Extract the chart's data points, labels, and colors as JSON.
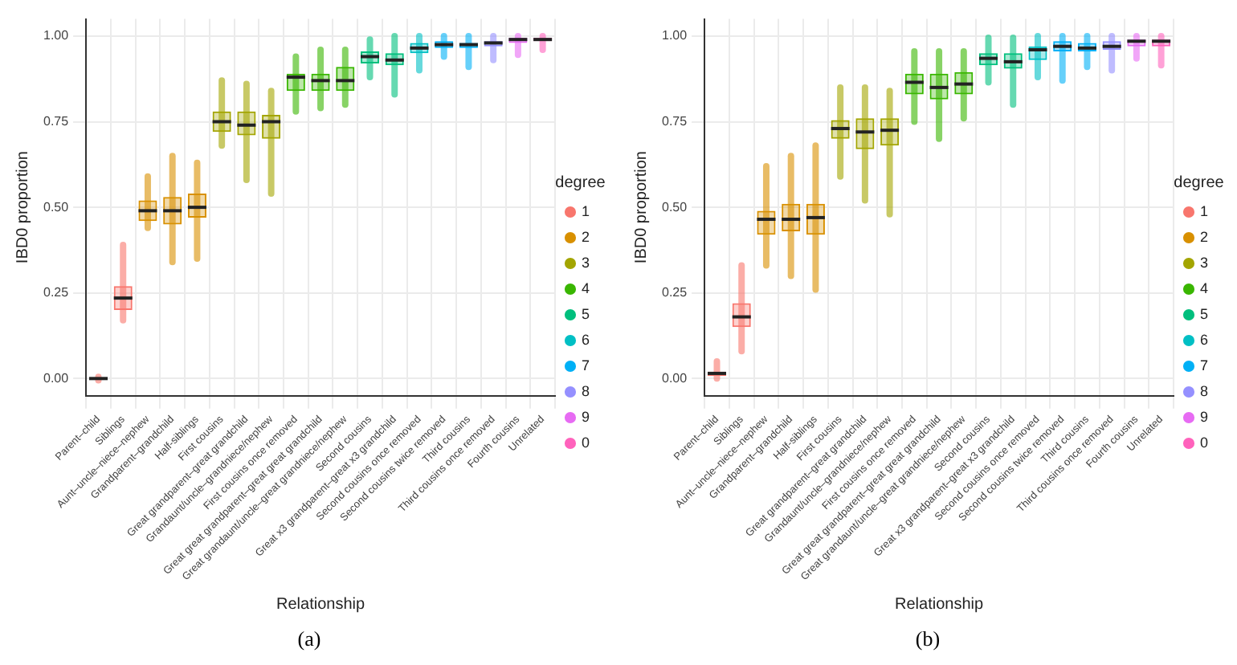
{
  "chart_data": [
    {
      "type": "box",
      "title": null,
      "xlabel": "Relationship",
      "ylabel": "IBD0 proportion",
      "legend_title": "degree",
      "legend": "right",
      "grid": true,
      "ylim": [
        -0.05,
        1.05
      ],
      "yticks": [
        {
          "value": 0,
          "label": "0.00"
        },
        {
          "value": 0.25,
          "label": "0.25"
        },
        {
          "value": 0.5,
          "label": "0.50"
        },
        {
          "value": 0.75,
          "label": "0.75"
        },
        {
          "value": 1,
          "label": "1.00"
        }
      ],
      "annotations": [
        "(a)"
      ],
      "categories": [
        "Parent–child",
        "Siblings",
        "Aunt–uncle–niece–nephew",
        "Grandparent–grandchild",
        "Half-siblings",
        "First cousins",
        "Great grandparent–great grandchild",
        "Grandaunt/uncle–grandniece/nephew",
        "First cousins once removed",
        "Great great grandparent–great great grandchild",
        "Great grandaunt/uncle–great grandniece/nephew",
        "Second cousins",
        "Great x3 grandparent–great x3 grandchild",
        "Second cousins once removed",
        "Second cousins twice removed",
        "Third cousins",
        "Third cousins once removed",
        "Fourth cousins",
        "Unrelated"
      ],
      "series": [
        {
          "name": "1",
          "color": "#f8766d",
          "boxes": [
            {
              "low": -0.005,
              "q1": -0.003,
              "median": 0,
              "q3": 0.002,
              "high": 0.005
            },
            {
              "low": 0.17,
              "q1": 0.2,
              "median": 0.235,
              "q3": 0.27,
              "high": 0.39
            },
            null,
            null,
            null,
            null,
            null,
            null,
            null,
            null,
            null,
            null,
            null,
            null,
            null,
            null,
            null,
            null,
            null
          ]
        },
        {
          "name": "2",
          "color": "#d89000",
          "boxes": [
            null,
            null,
            {
              "low": 0.44,
              "q1": 0.46,
              "median": 0.49,
              "q3": 0.52,
              "high": 0.59
            },
            {
              "low": 0.34,
              "q1": 0.45,
              "median": 0.49,
              "q3": 0.53,
              "high": 0.65
            },
            {
              "low": 0.35,
              "q1": 0.47,
              "median": 0.5,
              "q3": 0.54,
              "high": 0.63
            },
            null,
            null,
            null,
            null,
            null,
            null,
            null,
            null,
            null,
            null,
            null,
            null,
            null,
            null
          ]
        },
        {
          "name": "3",
          "color": "#a3a500",
          "boxes": [
            null,
            null,
            null,
            null,
            null,
            {
              "low": 0.68,
              "q1": 0.72,
              "median": 0.75,
              "q3": 0.78,
              "high": 0.87
            },
            {
              "low": 0.58,
              "q1": 0.71,
              "median": 0.74,
              "q3": 0.78,
              "high": 0.86
            },
            {
              "low": 0.54,
              "q1": 0.7,
              "median": 0.75,
              "q3": 0.77,
              "high": 0.84
            },
            null,
            null,
            null,
            null,
            null,
            null,
            null,
            null,
            null,
            null,
            null
          ]
        },
        {
          "name": "4",
          "color": "#39b600",
          "boxes": [
            null,
            null,
            null,
            null,
            null,
            null,
            null,
            null,
            {
              "low": 0.78,
              "q1": 0.84,
              "median": 0.88,
              "q3": 0.89,
              "high": 0.94
            },
            {
              "low": 0.79,
              "q1": 0.84,
              "median": 0.87,
              "q3": 0.89,
              "high": 0.96
            },
            {
              "low": 0.8,
              "q1": 0.84,
              "median": 0.87,
              "q3": 0.91,
              "high": 0.96
            },
            null,
            null,
            null,
            null,
            null,
            null,
            null,
            null
          ]
        },
        {
          "name": "5",
          "color": "#00bf7d",
          "boxes": [
            null,
            null,
            null,
            null,
            null,
            null,
            null,
            null,
            null,
            null,
            null,
            {
              "low": 0.88,
              "q1": 0.92,
              "median": 0.94,
              "q3": 0.955,
              "high": 0.99
            },
            {
              "low": 0.83,
              "q1": 0.915,
              "median": 0.93,
              "q3": 0.95,
              "high": 1
            },
            null,
            null,
            null,
            null,
            null,
            null
          ]
        },
        {
          "name": "6",
          "color": "#00bfc4",
          "boxes": [
            null,
            null,
            null,
            null,
            null,
            null,
            null,
            null,
            null,
            null,
            null,
            null,
            null,
            {
              "low": 0.9,
              "q1": 0.95,
              "median": 0.965,
              "q3": 0.98,
              "high": 1
            },
            null,
            null,
            null,
            null,
            null
          ]
        },
        {
          "name": "7",
          "color": "#00b0f6",
          "boxes": [
            null,
            null,
            null,
            null,
            null,
            null,
            null,
            null,
            null,
            null,
            null,
            null,
            null,
            null,
            {
              "low": 0.94,
              "q1": 0.965,
              "median": 0.975,
              "q3": 0.985,
              "high": 1
            },
            {
              "low": 0.91,
              "q1": 0.965,
              "median": 0.975,
              "q3": 0.98,
              "high": 1
            },
            null,
            null,
            null
          ]
        },
        {
          "name": "8",
          "color": "#9590ff",
          "boxes": [
            null,
            null,
            null,
            null,
            null,
            null,
            null,
            null,
            null,
            null,
            null,
            null,
            null,
            null,
            null,
            null,
            {
              "low": 0.93,
              "q1": 0.97,
              "median": 0.98,
              "q3": 0.985,
              "high": 1
            },
            null,
            null
          ]
        },
        {
          "name": "9",
          "color": "#e76bf3",
          "boxes": [
            null,
            null,
            null,
            null,
            null,
            null,
            null,
            null,
            null,
            null,
            null,
            null,
            null,
            null,
            null,
            null,
            null,
            {
              "low": 0.945,
              "q1": 0.98,
              "median": 0.99,
              "q3": 0.995,
              "high": 1
            },
            null
          ]
        },
        {
          "name": "0",
          "color": "#ff62bc",
          "boxes": [
            null,
            null,
            null,
            null,
            null,
            null,
            null,
            null,
            null,
            null,
            null,
            null,
            null,
            null,
            null,
            null,
            null,
            null,
            {
              "low": 0.96,
              "q1": 0.985,
              "median": 0.99,
              "q3": 0.995,
              "high": 1
            }
          ]
        }
      ]
    },
    {
      "type": "box",
      "title": null,
      "xlabel": "Relationship",
      "ylabel": "IBD0 proportion",
      "legend_title": "degree",
      "legend": "right",
      "grid": true,
      "ylim": [
        -0.05,
        1.05
      ],
      "yticks": [
        {
          "value": 0,
          "label": "0.00"
        },
        {
          "value": 0.25,
          "label": "0.25"
        },
        {
          "value": 0.5,
          "label": "0.50"
        },
        {
          "value": 0.75,
          "label": "0.75"
        },
        {
          "value": 1,
          "label": "1.00"
        }
      ],
      "annotations": [
        "(b)"
      ],
      "categories": [
        "Parent–child",
        "Siblings",
        "Aunt–uncle–niece–nephew",
        "Grandparent–grandchild",
        "Half-siblings",
        "First cousins",
        "Great grandparent–great grandchild",
        "Grandaunt/uncle–grandniece/nephew",
        "First cousins once removed",
        "Great great grandparent–great great grandchild",
        "Great grandaunt/uncle–great grandniece/nephew",
        "Second cousins",
        "Great x3 grandparent–great x3 grandchild",
        "Second cousins once removed",
        "Second cousins twice removed",
        "Third cousins",
        "Third cousins once removed",
        "Fourth cousins",
        "Unrelated"
      ],
      "series": [
        {
          "name": "1",
          "color": "#f8766d",
          "boxes": [
            {
              "low": 0,
              "q1": 0.008,
              "median": 0.015,
              "q3": 0.02,
              "high": 0.05
            },
            {
              "low": 0.08,
              "q1": 0.15,
              "median": 0.18,
              "q3": 0.22,
              "high": 0.33
            },
            null,
            null,
            null,
            null,
            null,
            null,
            null,
            null,
            null,
            null,
            null,
            null,
            null,
            null,
            null,
            null,
            null
          ]
        },
        {
          "name": "2",
          "color": "#d89000",
          "boxes": [
            null,
            null,
            {
              "low": 0.33,
              "q1": 0.42,
              "median": 0.465,
              "q3": 0.49,
              "high": 0.62
            },
            {
              "low": 0.3,
              "q1": 0.43,
              "median": 0.465,
              "q3": 0.51,
              "high": 0.65
            },
            {
              "low": 0.26,
              "q1": 0.42,
              "median": 0.47,
              "q3": 0.51,
              "high": 0.68
            },
            null,
            null,
            null,
            null,
            null,
            null,
            null,
            null,
            null,
            null,
            null,
            null,
            null,
            null
          ]
        },
        {
          "name": "3",
          "color": "#a3a500",
          "boxes": [
            null,
            null,
            null,
            null,
            null,
            {
              "low": 0.59,
              "q1": 0.7,
              "median": 0.73,
              "q3": 0.755,
              "high": 0.85
            },
            {
              "low": 0.52,
              "q1": 0.67,
              "median": 0.72,
              "q3": 0.76,
              "high": 0.85
            },
            {
              "low": 0.48,
              "q1": 0.68,
              "median": 0.725,
              "q3": 0.76,
              "high": 0.84
            },
            null,
            null,
            null,
            null,
            null,
            null,
            null,
            null,
            null,
            null,
            null
          ]
        },
        {
          "name": "4",
          "color": "#39b600",
          "boxes": [
            null,
            null,
            null,
            null,
            null,
            null,
            null,
            null,
            {
              "low": 0.75,
              "q1": 0.83,
              "median": 0.865,
              "q3": 0.89,
              "high": 0.955
            },
            {
              "low": 0.7,
              "q1": 0.815,
              "median": 0.85,
              "q3": 0.89,
              "high": 0.955
            },
            {
              "low": 0.76,
              "q1": 0.83,
              "median": 0.86,
              "q3": 0.895,
              "high": 0.955
            },
            null,
            null,
            null,
            null,
            null,
            null,
            null,
            null
          ]
        },
        {
          "name": "5",
          "color": "#00bf7d",
          "boxes": [
            null,
            null,
            null,
            null,
            null,
            null,
            null,
            null,
            null,
            null,
            null,
            {
              "low": 0.865,
              "q1": 0.915,
              "median": 0.935,
              "q3": 0.95,
              "high": 0.995
            },
            {
              "low": 0.8,
              "q1": 0.905,
              "median": 0.925,
              "q3": 0.95,
              "high": 0.995
            },
            null,
            null,
            null,
            null,
            null,
            null
          ]
        },
        {
          "name": "6",
          "color": "#00bfc4",
          "boxes": [
            null,
            null,
            null,
            null,
            null,
            null,
            null,
            null,
            null,
            null,
            null,
            null,
            null,
            {
              "low": 0.88,
              "q1": 0.93,
              "median": 0.96,
              "q3": 0.97,
              "high": 1
            },
            null,
            null,
            null,
            null,
            null
          ]
        },
        {
          "name": "7",
          "color": "#00b0f6",
          "boxes": [
            null,
            null,
            null,
            null,
            null,
            null,
            null,
            null,
            null,
            null,
            null,
            null,
            null,
            null,
            {
              "low": 0.87,
              "q1": 0.955,
              "median": 0.97,
              "q3": 0.985,
              "high": 1
            },
            {
              "low": 0.91,
              "q1": 0.955,
              "median": 0.965,
              "q3": 0.98,
              "high": 1
            },
            null,
            null,
            null
          ]
        },
        {
          "name": "8",
          "color": "#9590ff",
          "boxes": [
            null,
            null,
            null,
            null,
            null,
            null,
            null,
            null,
            null,
            null,
            null,
            null,
            null,
            null,
            null,
            null,
            {
              "low": 0.9,
              "q1": 0.96,
              "median": 0.97,
              "q3": 0.985,
              "high": 1
            },
            null,
            null
          ]
        },
        {
          "name": "9",
          "color": "#e76bf3",
          "boxes": [
            null,
            null,
            null,
            null,
            null,
            null,
            null,
            null,
            null,
            null,
            null,
            null,
            null,
            null,
            null,
            null,
            null,
            {
              "low": 0.935,
              "q1": 0.97,
              "median": 0.985,
              "q3": 0.99,
              "high": 1
            },
            null
          ]
        },
        {
          "name": "0",
          "color": "#ff62bc",
          "boxes": [
            null,
            null,
            null,
            null,
            null,
            null,
            null,
            null,
            null,
            null,
            null,
            null,
            null,
            null,
            null,
            null,
            null,
            null,
            {
              "low": 0.915,
              "q1": 0.97,
              "median": 0.985,
              "q3": 0.99,
              "high": 1
            }
          ]
        }
      ]
    }
  ]
}
